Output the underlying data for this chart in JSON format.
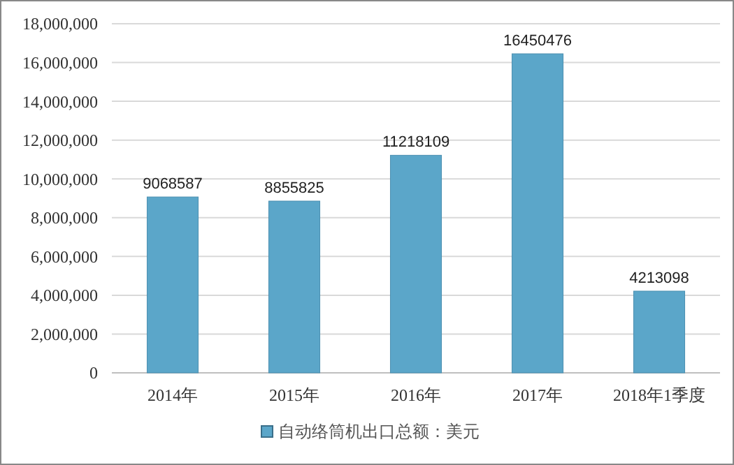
{
  "chart_data": {
    "type": "bar",
    "categories": [
      "2014年",
      "2015年",
      "2016年",
      "2017年",
      "2018年1季度"
    ],
    "series": [
      {
        "name": "自动络筒机出口总额：美元",
        "color": "#5ba6c9",
        "values": [
          9068587,
          8855825,
          11218109,
          16450476,
          4213098
        ]
      }
    ],
    "ylim": [
      0,
      18000000
    ],
    "yticks": [
      0,
      {
        "value": 2000000,
        "label": "2,000,000"
      },
      {
        "value": 4000000,
        "label": "4,000,000"
      },
      {
        "value": 6000000,
        "label": "6,000,000"
      },
      {
        "value": 8000000,
        "label": "8,000,000"
      },
      {
        "value": 10000000,
        "label": "10,000,000"
      },
      {
        "value": 12000000,
        "label": "12,000,000"
      },
      {
        "value": 14000000,
        "label": "14,000,000"
      },
      {
        "value": 16000000,
        "label": "16,000,000"
      },
      {
        "value": 18000000,
        "label": "18,000,000"
      }
    ],
    "grid": "y",
    "legend": "bottom",
    "data_labels": true
  }
}
